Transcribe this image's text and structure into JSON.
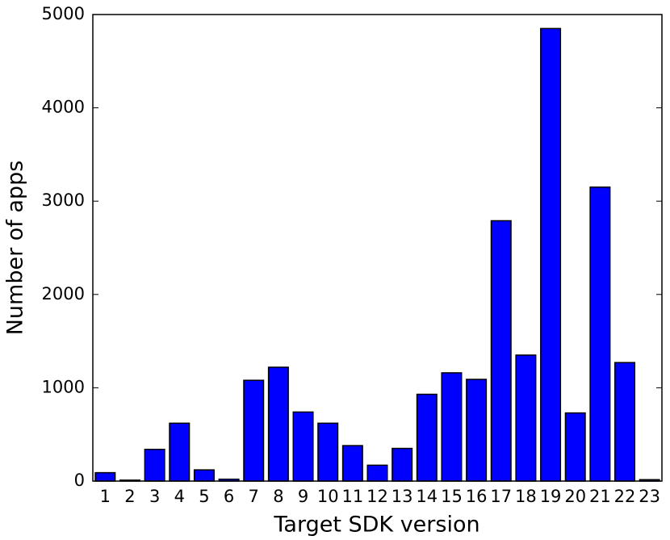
{
  "chart_data": {
    "type": "bar",
    "x_label": "Target SDK version",
    "y_label": "Number of apps",
    "categories": [
      "1",
      "2",
      "3",
      "4",
      "5",
      "6",
      "7",
      "8",
      "9",
      "10",
      "11",
      "12",
      "13",
      "14",
      "15",
      "16",
      "17",
      "18",
      "19",
      "20",
      "21",
      "22",
      "23"
    ],
    "values": [
      90,
      10,
      340,
      620,
      120,
      20,
      1080,
      1220,
      740,
      620,
      380,
      170,
      350,
      930,
      1160,
      1090,
      2790,
      1350,
      4850,
      730,
      3150,
      1270,
      15
    ],
    "color": "#0000ff",
    "ylim": [
      0,
      5000
    ],
    "yticks": [
      0,
      1000,
      2000,
      3000,
      4000,
      5000
    ]
  }
}
